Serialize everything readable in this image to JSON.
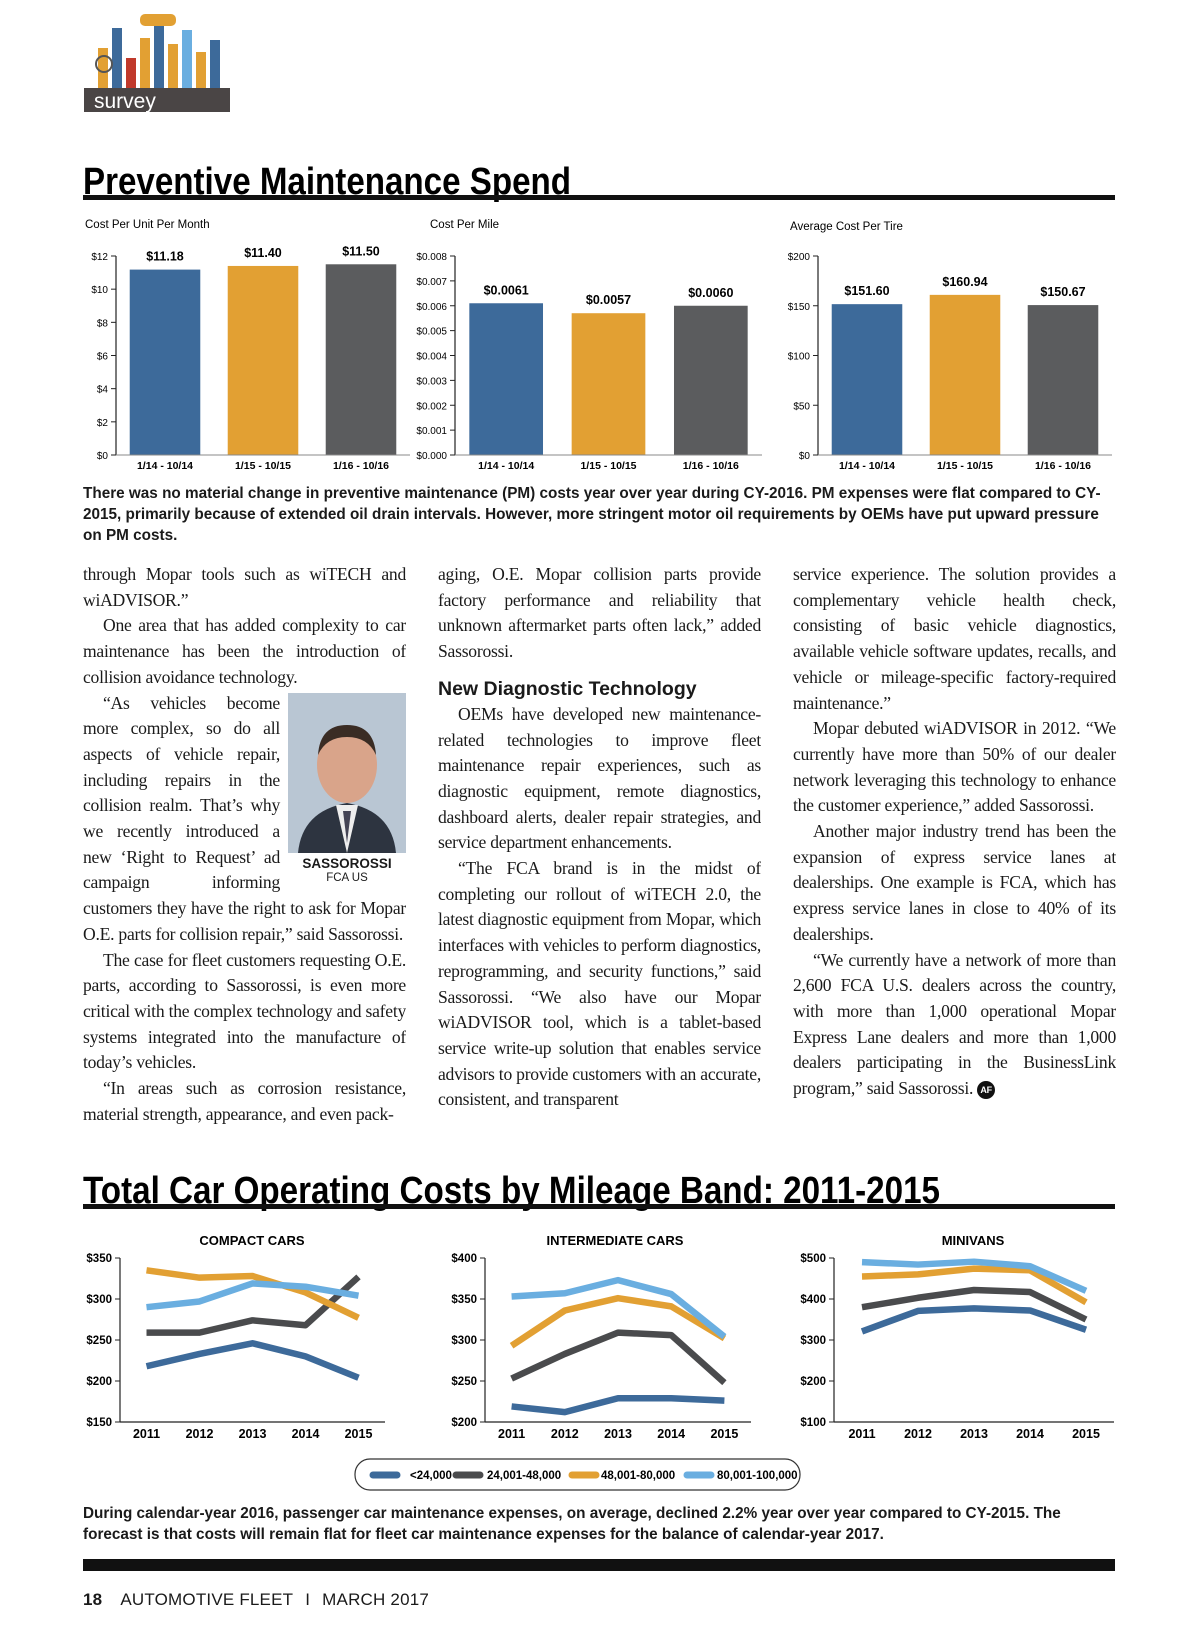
{
  "header": {
    "section": "survey"
  },
  "sections": [
    {
      "title": "Preventive Maintenance Spend",
      "caption": "There was no material change in preventive maintenance (PM) costs year over year during CY-2016. PM expenses were flat compared to CY-2015, primarily because of extended oil drain intervals. However, more stringent motor oil requirements by OEMs have put upward pressure on PM costs."
    },
    {
      "title": "Total Car Operating Costs by Mileage Band: 2011-2015",
      "caption": "During calendar-year 2016, passenger car maintenance expenses, on average, declined 2.2% year over year compared to CY-2015. The forecast is that costs will remain flat for fleet car maintenance expenses for the balance of calendar-year 2017."
    }
  ],
  "article": {
    "columns": [
      [
        "through Mopar tools such as wiTECH and wiADVISOR.”",
        "One area that has added complexity to car maintenance has been the introduction of collision avoidance technology.",
        "“As vehicles become more complex, so do all aspects of vehicle repair, including repairs in the collision realm. That’s why we recently introduced a new ‘Right to Request’ ad campaign informing customers they have the right to ask for Mopar O.E. parts for collision repair,” said Sassorossi.",
        "The case for fleet customers requesting O.E. parts, according to Sassorossi, is even more critical with the complex technology and safety systems integrated into the manufacture of today’s vehicles.",
        "“In areas such as corrosion resistance, material strength, appearance, and even pack-"
      ],
      [
        "aging, O.E. Mopar collision parts provide factory performance and reliability that unknown aftermarket parts often lack,” added Sassorossi.",
        {
          "heading": "New Diagnostic Technology"
        },
        "OEMs have developed new maintenance-related technologies to improve fleet maintenance repair experiences, such as diagnostic equipment, remote diagnostics, dashboard alerts, dealer repair strategies, and service department enhancements.",
        "“The FCA brand is in the midst of completing our rollout of wiTECH 2.0, the latest diagnostic equipment from Mopar, which interfaces with vehicles to perform diagnostics, reprogramming, and security functions,” said Sassorossi. “We also have our Mopar wiADVISOR tool, which is a tablet-based service write-up solution that enables service advisors to provide customers with an accurate, consistent, and transparent"
      ],
      [
        "service experience. The solution provides a complementary vehicle health check, consisting of basic vehicle diagnostics, available vehicle software updates, recalls, and vehicle or mileage-specific factory-required maintenance.”",
        "Mopar debuted wiADVISOR in 2012. “We currently have more than 50% of our dealer network leveraging this technology to enhance the customer experience,” added Sassorossi.",
        "Another major industry trend has been the expansion of express service lanes at dealerships. One example is FCA, which has express service lanes in close to 40% of its dealerships.",
        "“We currently have a network of more than 2,600 FCA U.S. dealers across the country, with more than 1,000 operational Mopar Express Lane dealers and more than 1,000 dealers participating in the BusinessLink program,” said Sassorossi."
      ]
    ],
    "photo_caption": {
      "name": "SASSOROSSI",
      "org": "FCA US"
    },
    "end_mark": "AF"
  },
  "line_legend": [
    {
      "name": "<24,000",
      "color": "#3d6a9a"
    },
    {
      "name": "24,001-48,000",
      "color": "#4a4b4d"
    },
    {
      "name": "48,001-80,000",
      "color": "#e2a033"
    },
    {
      "name": "80,001-100,000",
      "color": "#6aaee0"
    }
  ],
  "chart_data": [
    {
      "type": "bar",
      "title": "Cost Per Unit Per Month",
      "categories": [
        "1/14 - 10/14",
        "1/15 - 10/15",
        "1/16 - 10/16"
      ],
      "values": [
        11.18,
        11.4,
        11.5
      ],
      "value_labels": [
        "$11.18",
        "$11.40",
        "$11.50"
      ],
      "colors": [
        "#3d6a9a",
        "#e2a033",
        "#5b5c5e"
      ],
      "ylim": [
        0,
        12
      ],
      "yticks": [
        {
          "value": 0,
          "label": "$0"
        },
        {
          "value": 2,
          "label": "$2"
        },
        {
          "value": 4,
          "label": "$4"
        },
        {
          "value": 6,
          "label": "$6"
        },
        {
          "value": 8,
          "label": "$8"
        },
        {
          "value": 10,
          "label": "$10"
        },
        {
          "value": 12,
          "label": "$12"
        }
      ]
    },
    {
      "type": "bar",
      "title": "Cost Per Mile",
      "categories": [
        "1/14 - 10/14",
        "1/15 - 10/15",
        "1/16 - 10/16"
      ],
      "values": [
        0.0061,
        0.0057,
        0.006
      ],
      "value_labels": [
        "$0.0061",
        "$0.0057",
        "$0.0060"
      ],
      "colors": [
        "#3d6a9a",
        "#e2a033",
        "#5b5c5e"
      ],
      "ylim": [
        0,
        0.008
      ],
      "yticks": [
        {
          "value": 0,
          "label": "$0.000"
        },
        {
          "value": 0.001,
          "label": "$0.001"
        },
        {
          "value": 0.002,
          "label": "$0.002"
        },
        {
          "value": 0.003,
          "label": "$0.003"
        },
        {
          "value": 0.004,
          "label": "$0.004"
        },
        {
          "value": 0.005,
          "label": "$0.005"
        },
        {
          "value": 0.006,
          "label": "$0.006"
        },
        {
          "value": 0.007,
          "label": "$0.007"
        },
        {
          "value": 0.008,
          "label": "$0.008"
        }
      ]
    },
    {
      "type": "bar",
      "title": "Average Cost Per Tire",
      "categories": [
        "1/14 - 10/14",
        "1/15 - 10/15",
        "1/16 - 10/16"
      ],
      "values": [
        151.6,
        160.94,
        150.67
      ],
      "value_labels": [
        "$151.60",
        "$160.94",
        "$150.67"
      ],
      "colors": [
        "#3d6a9a",
        "#e2a033",
        "#5b5c5e"
      ],
      "ylim": [
        0,
        200
      ],
      "yticks": [
        {
          "value": 0,
          "label": "$0"
        },
        {
          "value": 50,
          "label": "$50"
        },
        {
          "value": 100,
          "label": "$100"
        },
        {
          "value": 150,
          "label": "$150"
        },
        {
          "value": 200,
          "label": "$200"
        }
      ]
    },
    {
      "type": "line",
      "title": "COMPACT CARS",
      "categories": [
        "2011",
        "2012",
        "2013",
        "2014",
        "2015"
      ],
      "series": [
        {
          "values": [
            218,
            233,
            246,
            230,
            204
          ]
        },
        {
          "values": [
            259,
            259,
            274,
            268,
            327
          ]
        },
        {
          "values": [
            335,
            326,
            328,
            308,
            277
          ]
        },
        {
          "values": [
            290,
            297,
            319,
            315,
            304
          ]
        }
      ],
      "ylim": [
        150,
        350
      ],
      "yticks": [
        {
          "value": 150,
          "label": "$150"
        },
        {
          "value": 200,
          "label": "$200"
        },
        {
          "value": 250,
          "label": "$250"
        },
        {
          "value": 300,
          "label": "$300"
        },
        {
          "value": 350,
          "label": "$350"
        }
      ]
    },
    {
      "type": "line",
      "title": "INTERMEDIATE CARS",
      "categories": [
        "2011",
        "2012",
        "2013",
        "2014",
        "2015"
      ],
      "series": [
        {
          "values": [
            219,
            212,
            229,
            229,
            226
          ]
        },
        {
          "values": [
            253,
            283,
            309,
            306,
            248
          ]
        },
        {
          "values": [
            293,
            336,
            351,
            341,
            302
          ]
        },
        {
          "values": [
            353,
            357,
            373,
            356,
            304
          ]
        }
      ],
      "ylim": [
        200,
        400
      ],
      "yticks": [
        {
          "value": 200,
          "label": "$200"
        },
        {
          "value": 250,
          "label": "$250"
        },
        {
          "value": 300,
          "label": "$300"
        },
        {
          "value": 350,
          "label": "$350"
        },
        {
          "value": 400,
          "label": "$400"
        }
      ]
    },
    {
      "type": "line",
      "title": "MINIVANS",
      "categories": [
        "2011",
        "2012",
        "2013",
        "2014",
        "2015"
      ],
      "series": [
        {
          "values": [
            321,
            371,
            377,
            372,
            325
          ]
        },
        {
          "values": [
            380,
            403,
            422,
            417,
            350
          ]
        },
        {
          "values": [
            455,
            460,
            474,
            470,
            392
          ]
        },
        {
          "values": [
            490,
            484,
            491,
            480,
            420
          ]
        }
      ],
      "ylim": [
        100,
        500
      ],
      "yticks": [
        {
          "value": 100,
          "label": "$100"
        },
        {
          "value": 200,
          "label": "$200"
        },
        {
          "value": 300,
          "label": "$300"
        },
        {
          "value": 400,
          "label": "$400"
        },
        {
          "value": 500,
          "label": "$500"
        }
      ]
    }
  ],
  "footer": {
    "page": "18",
    "publication": "AUTOMOTIVE FLEET",
    "separator": "I",
    "date": "MARCH 2017"
  }
}
